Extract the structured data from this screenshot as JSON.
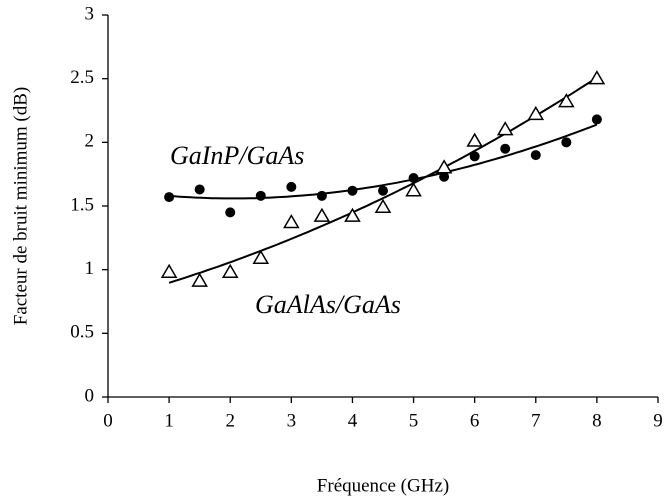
{
  "chart_data": {
    "type": "scatter",
    "xlabel": "Fréquence (GHz)",
    "ylabel": "Facteur de bruit minimum (dB)",
    "xlim": [
      0,
      9
    ],
    "xticks": [
      0,
      1,
      2,
      3,
      4,
      5,
      6,
      7,
      8,
      9
    ],
    "ylim": [
      0,
      3
    ],
    "yticks": [
      0,
      0.5,
      1,
      1.5,
      2,
      2.5,
      3
    ],
    "series": [
      {
        "name": "GaInP/GaAs",
        "marker": "circle",
        "color": "#000000",
        "trendline_order": 3,
        "x": [
          1,
          1.5,
          2,
          2.5,
          3,
          3.5,
          4,
          4.5,
          5,
          5.5,
          6,
          6.5,
          7,
          7.5,
          8
        ],
        "values": [
          1.57,
          1.63,
          1.45,
          1.58,
          1.65,
          1.58,
          1.62,
          1.62,
          1.72,
          1.73,
          1.89,
          1.95,
          1.9,
          2.0,
          2.18
        ]
      },
      {
        "name": "GaAlAs/GaAs",
        "marker": "triangle",
        "color": "#000000",
        "trendline_order": 2,
        "x": [
          1,
          1.5,
          2,
          2.5,
          3,
          3.5,
          4,
          4.5,
          5,
          5.5,
          6,
          6.5,
          7,
          7.5,
          8
        ],
        "values": [
          0.98,
          0.91,
          0.98,
          1.09,
          1.37,
          1.42,
          1.42,
          1.49,
          1.62,
          1.8,
          2.01,
          2.1,
          2.22,
          2.32,
          2.5
        ]
      }
    ]
  }
}
